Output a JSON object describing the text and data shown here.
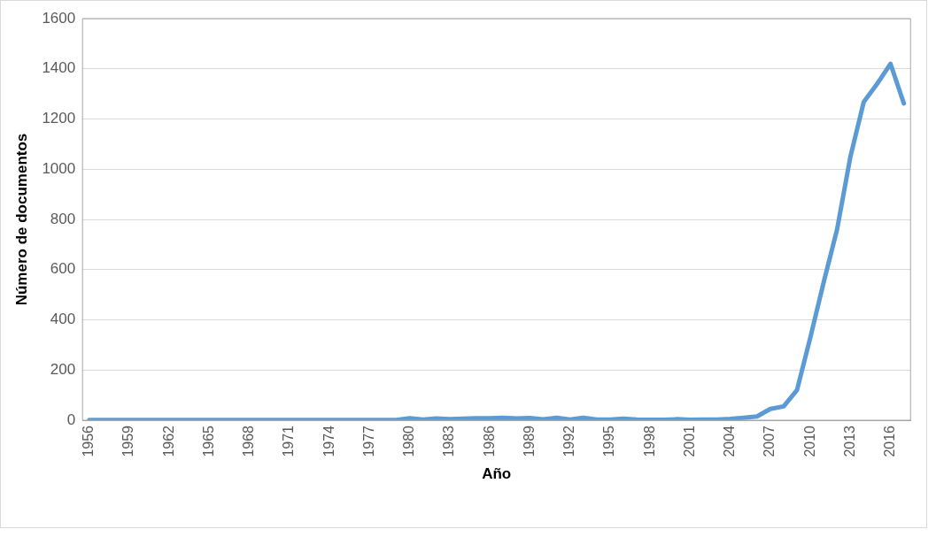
{
  "chart_data": {
    "type": "line",
    "xlabel": "Año",
    "ylabel": "Número de documentos",
    "categories": [
      "1956",
      null,
      null,
      "1959",
      null,
      null,
      "1962",
      null,
      null,
      "1965",
      null,
      null,
      "1968",
      null,
      null,
      "1971",
      null,
      null,
      "1974",
      null,
      null,
      "1977",
      null,
      null,
      "1980",
      null,
      null,
      "1983",
      null,
      null,
      "1986",
      null,
      null,
      "1989",
      null,
      null,
      "1992",
      null,
      null,
      "1995",
      null,
      null,
      "1998",
      null,
      null,
      "2001",
      null,
      null,
      "2004",
      null,
      null,
      "2007",
      null,
      null,
      "2010",
      null,
      null,
      "2013",
      null,
      null,
      "2016",
      null
    ],
    "series": [
      {
        "color": "#5b9bd5",
        "values": [
          1,
          1,
          1,
          1,
          1,
          1,
          1,
          1,
          1,
          1,
          1,
          1,
          1,
          1,
          1,
          1,
          1,
          1,
          1,
          1,
          1,
          1,
          1,
          1,
          8,
          3,
          7,
          4,
          6,
          8,
          8,
          10,
          7,
          9,
          4,
          10,
          3,
          10,
          3,
          3,
          6,
          3,
          2,
          2,
          4,
          2,
          3,
          3,
          5,
          10,
          15,
          45,
          55,
          120,
          330,
          550,
          760,
          1050,
          1268,
          1340,
          1420,
          1262
        ]
      }
    ],
    "ylim": [
      0,
      1600
    ],
    "yticks": [
      0,
      200,
      400,
      600,
      800,
      1000,
      1200,
      1400,
      1600
    ],
    "grid": "y",
    "legend": false,
    "marker": "none",
    "line_style": "solid"
  }
}
